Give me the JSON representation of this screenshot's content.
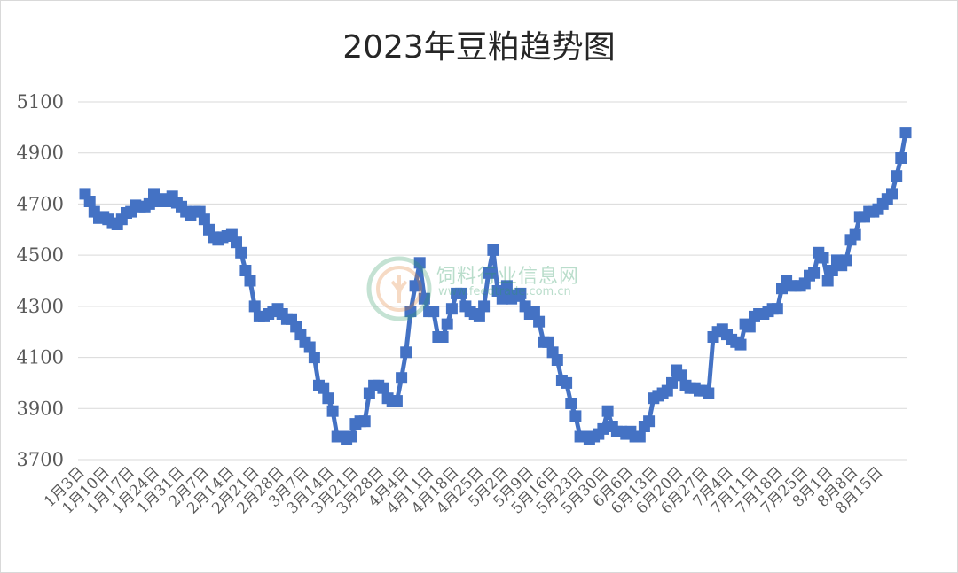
{
  "chart_data": {
    "type": "line",
    "title": "2023年豆粕趋势图",
    "xlabel": "",
    "ylabel": "",
    "ylim": [
      3700,
      5100
    ],
    "yticks": [
      3700,
      3900,
      4100,
      4300,
      4500,
      4700,
      4900,
      5100
    ],
    "grid": true,
    "legend": "none",
    "color": "#4472c4",
    "marker": "square",
    "x_tick_labels": [
      "1月3日",
      "1月10日",
      "1月17日",
      "1月24日",
      "1月31日",
      "2月7日",
      "2月14日",
      "2月21日",
      "2月28日",
      "3月7日",
      "3月14日",
      "3月21日",
      "3月28日",
      "4月4日",
      "4月11日",
      "4月18日",
      "4月25日",
      "5月2日",
      "5月9日",
      "5月16日",
      "5月23日",
      "5月30日",
      "6月6日",
      "6月13日",
      "6月20日",
      "6月27日",
      "7月4日",
      "7月11日",
      "7月18日",
      "7月25日",
      "8月1日",
      "8月8日",
      "8月15日"
    ],
    "series": [
      {
        "values": [
          4740,
          4710,
          4670,
          4645,
          4650,
          4640,
          4625,
          4620,
          4640,
          4665,
          4670,
          4695,
          4690,
          4690,
          4700,
          4740,
          4710,
          4720,
          4710,
          4730,
          4705,
          4690,
          4670,
          4655,
          4670,
          4670,
          4640,
          4600,
          4570,
          4560,
          4570,
          4575,
          4580,
          4550,
          4510,
          4440,
          4400,
          4300,
          4260,
          4260,
          4270,
          4280,
          4290,
          4270,
          4250,
          4250,
          4220,
          4190,
          4160,
          4140,
          4100,
          3990,
          3980,
          3940,
          3890,
          3790,
          3790,
          3780,
          3790,
          3840,
          3850,
          3850,
          3960,
          3990,
          3990,
          3980,
          3940,
          3930,
          3930,
          4020,
          4120,
          4280,
          4380,
          4470,
          4330,
          4280,
          4280,
          4180,
          4180,
          4230,
          4290,
          4350,
          4350,
          4300,
          4280,
          4270,
          4260,
          4300,
          4430,
          4520,
          4360,
          4330,
          4380,
          4330,
          4340,
          4350,
          4300,
          4270,
          4280,
          4240,
          4160,
          4160,
          4120,
          4090,
          4010,
          4000,
          3920,
          3870,
          3790,
          3790,
          3780,
          3790,
          3800,
          3820,
          3890,
          3830,
          3810,
          3810,
          3800,
          3810,
          3790,
          3790,
          3830,
          3850,
          3940,
          3950,
          3960,
          3970,
          4000,
          4050,
          4030,
          3990,
          3980,
          3980,
          3970,
          3970,
          3960,
          4180,
          4200,
          4210,
          4190,
          4170,
          4160,
          4150,
          4230,
          4220,
          4260,
          4270,
          4270,
          4280,
          4290,
          4290,
          4370,
          4400,
          4380,
          4380,
          4380,
          4390,
          4420,
          4430,
          4510,
          4490,
          4400,
          4440,
          4480,
          4460,
          4480,
          4560,
          4580,
          4650,
          4650,
          4670,
          4670,
          4680,
          4700,
          4720,
          4740,
          4810,
          4880,
          4980
        ]
      }
    ]
  }
}
